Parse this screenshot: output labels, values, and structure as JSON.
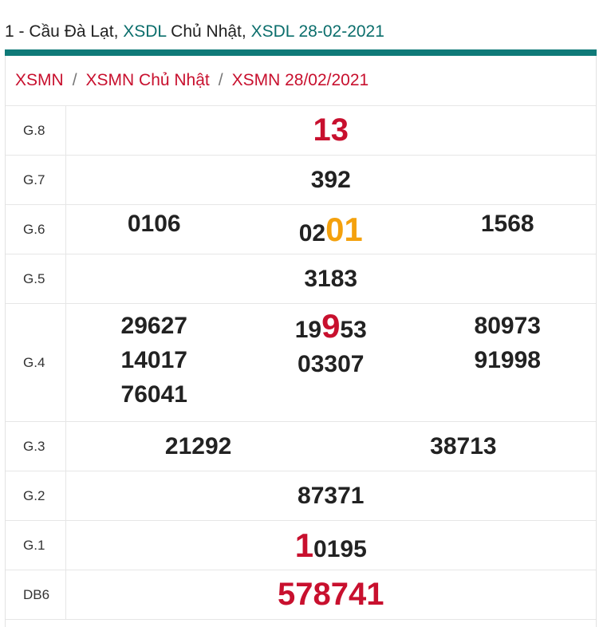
{
  "header": {
    "prefix": "1 - Cầu Đà Lạt, ",
    "link1": "XSDL",
    "middle": " Chủ Nhật, ",
    "link2": "XSDL 28-02-2021"
  },
  "breadcrumb": [
    "XSMN",
    "XSMN Chủ Nhật",
    "XSMN 28/02/2021"
  ],
  "breadcrumb_separator": "/",
  "prizes": {
    "g8": {
      "label": "G.8",
      "value": "13"
    },
    "g7": {
      "label": "G.7",
      "value": "392"
    },
    "g6": {
      "label": "G.6",
      "values": [
        "0106",
        "0201",
        "1568"
      ],
      "mid_prefix": "02",
      "mid_highlight": "01"
    },
    "g5": {
      "label": "G.5",
      "value": "3183"
    },
    "g4": {
      "label": "G.4",
      "col1": [
        "29627",
        "14017",
        "76041"
      ],
      "col2_first": {
        "a": "19",
        "b": "9",
        "c": "53"
      },
      "col2": [
        "19953",
        "03307"
      ],
      "col3": [
        "80973",
        "91998"
      ]
    },
    "g3": {
      "label": "G.3",
      "values": [
        "21292",
        "38713"
      ]
    },
    "g2": {
      "label": "G.2",
      "value": "87371"
    },
    "g1": {
      "label": "G.1",
      "value": "10195",
      "highlight": "1",
      "rest": "0195"
    },
    "db": {
      "label": "DB6",
      "value": "578741"
    }
  },
  "colors": {
    "accent": "#0f7a78",
    "red": "#c8102e",
    "orange": "#f4a10d"
  }
}
